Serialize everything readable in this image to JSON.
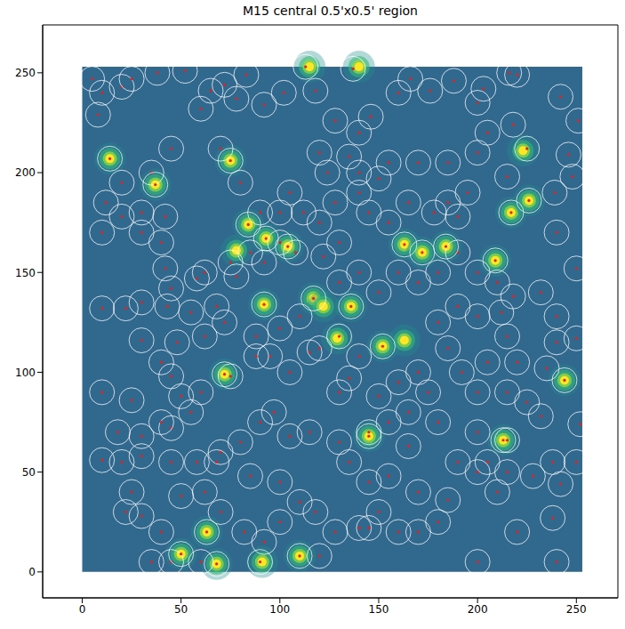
{
  "chart_data": {
    "type": "scatter",
    "title": "M15 central 0.5'x0.5' region",
    "xlim": [
      -20,
      271
    ],
    "ylim": [
      -13,
      274
    ],
    "xticks": [
      0,
      50,
      100,
      150,
      200,
      250
    ],
    "yticks": [
      0,
      50,
      100,
      150,
      200,
      250
    ],
    "image_extent": [
      0,
      253
    ],
    "color": "#d62728",
    "marker": "circle",
    "tick_labels": true,
    "bright_sources": [
      [
        14,
        207
      ],
      [
        37,
        194
      ],
      [
        75,
        206
      ],
      [
        84,
        174
      ],
      [
        93,
        167
      ],
      [
        78,
        161
      ],
      [
        104,
        163
      ],
      [
        92,
        134
      ],
      [
        117,
        137
      ],
      [
        122,
        133
      ],
      [
        136,
        133
      ],
      [
        152,
        113
      ],
      [
        163,
        164
      ],
      [
        172,
        160
      ],
      [
        184,
        163
      ],
      [
        209,
        156
      ],
      [
        217,
        180
      ],
      [
        226,
        186
      ],
      [
        223,
        211
      ],
      [
        72,
        99
      ],
      [
        244,
        96
      ],
      [
        145,
        68
      ],
      [
        213,
        66
      ],
      [
        63,
        20
      ],
      [
        50,
        9
      ],
      [
        68,
        4
      ],
      [
        91,
        5
      ],
      [
        110,
        8
      ],
      [
        115,
        253
      ],
      [
        140,
        253
      ],
      [
        163,
        116
      ],
      [
        129,
        117
      ]
    ],
    "sources": [
      [
        5,
        247
      ],
      [
        10,
        240
      ],
      [
        8,
        229
      ],
      [
        20,
        243
      ],
      [
        25,
        247
      ],
      [
        38,
        250
      ],
      [
        52,
        251
      ],
      [
        65,
        241
      ],
      [
        72,
        244
      ],
      [
        78,
        237
      ],
      [
        83,
        249
      ],
      [
        92,
        234
      ],
      [
        102,
        240
      ],
      [
        113,
        253
      ],
      [
        118,
        241
      ],
      [
        137,
        252
      ],
      [
        135,
        208
      ],
      [
        128,
        226
      ],
      [
        140,
        220
      ],
      [
        146,
        228
      ],
      [
        160,
        240
      ],
      [
        166,
        247
      ],
      [
        176,
        241
      ],
      [
        188,
        246
      ],
      [
        200,
        235
      ],
      [
        203,
        242
      ],
      [
        216,
        250
      ],
      [
        218,
        224
      ],
      [
        220,
        249
      ],
      [
        242,
        238
      ],
      [
        251,
        226
      ],
      [
        155,
        205
      ],
      [
        150,
        197
      ],
      [
        140,
        200
      ],
      [
        120,
        210
      ],
      [
        124,
        200
      ],
      [
        105,
        190
      ],
      [
        100,
        180
      ],
      [
        112,
        180
      ],
      [
        120,
        175
      ],
      [
        130,
        165
      ],
      [
        128,
        185
      ],
      [
        140,
        190
      ],
      [
        145,
        180
      ],
      [
        165,
        185
      ],
      [
        178,
        180
      ],
      [
        185,
        185
      ],
      [
        190,
        178
      ],
      [
        195,
        190
      ],
      [
        185,
        205
      ],
      [
        200,
        210
      ],
      [
        205,
        220
      ],
      [
        170,
        205
      ],
      [
        155,
        175
      ],
      [
        215,
        198
      ],
      [
        225,
        212
      ],
      [
        239,
        190
      ],
      [
        248,
        198
      ],
      [
        246,
        209
      ],
      [
        240,
        170
      ],
      [
        250,
        152
      ],
      [
        232,
        140
      ],
      [
        218,
        138
      ],
      [
        210,
        145
      ],
      [
        200,
        150
      ],
      [
        190,
        160
      ],
      [
        180,
        150
      ],
      [
        170,
        145
      ],
      [
        160,
        150
      ],
      [
        150,
        140
      ],
      [
        140,
        150
      ],
      [
        130,
        145
      ],
      [
        122,
        158
      ],
      [
        108,
        160
      ],
      [
        100,
        165
      ],
      [
        92,
        155
      ],
      [
        85,
        160
      ],
      [
        75,
        155
      ],
      [
        62,
        150
      ],
      [
        58,
        147
      ],
      [
        42,
        152
      ],
      [
        45,
        142
      ],
      [
        40,
        165
      ],
      [
        42,
        178
      ],
      [
        30,
        170
      ],
      [
        30,
        180
      ],
      [
        20,
        178
      ],
      [
        10,
        170
      ],
      [
        12,
        185
      ],
      [
        20,
        195
      ],
      [
        35,
        200
      ],
      [
        45,
        212
      ],
      [
        60,
        232
      ],
      [
        70,
        212
      ],
      [
        80,
        195
      ],
      [
        90,
        180
      ],
      [
        78,
        148
      ],
      [
        68,
        133
      ],
      [
        55,
        130
      ],
      [
        43,
        133
      ],
      [
        30,
        135
      ],
      [
        22,
        132
      ],
      [
        10,
        132
      ],
      [
        30,
        116
      ],
      [
        48,
        115
      ],
      [
        62,
        118
      ],
      [
        72,
        125
      ],
      [
        88,
        118
      ],
      [
        95,
        108
      ],
      [
        105,
        100
      ],
      [
        115,
        110
      ],
      [
        100,
        122
      ],
      [
        110,
        128
      ],
      [
        120,
        112
      ],
      [
        130,
        118
      ],
      [
        140,
        108
      ],
      [
        135,
        97
      ],
      [
        130,
        90
      ],
      [
        150,
        88
      ],
      [
        160,
        95
      ],
      [
        170,
        100
      ],
      [
        175,
        90
      ],
      [
        165,
        80
      ],
      [
        155,
        75
      ],
      [
        145,
        70
      ],
      [
        130,
        65
      ],
      [
        115,
        70
      ],
      [
        105,
        68
      ],
      [
        97,
        80
      ],
      [
        90,
        75
      ],
      [
        80,
        65
      ],
      [
        70,
        60
      ],
      [
        58,
        55
      ],
      [
        45,
        55
      ],
      [
        30,
        58
      ],
      [
        20,
        55
      ],
      [
        10,
        56
      ],
      [
        18,
        70
      ],
      [
        30,
        68
      ],
      [
        45,
        72
      ],
      [
        55,
        80
      ],
      [
        50,
        88
      ],
      [
        45,
        98
      ],
      [
        40,
        105
      ],
      [
        25,
        86
      ],
      [
        10,
        90
      ],
      [
        60,
        90
      ],
      [
        75,
        98
      ],
      [
        88,
        108
      ],
      [
        185,
        112
      ],
      [
        180,
        125
      ],
      [
        190,
        133
      ],
      [
        200,
        128
      ],
      [
        212,
        130
      ],
      [
        215,
        118
      ],
      [
        205,
        105
      ],
      [
        192,
        100
      ],
      [
        200,
        90
      ],
      [
        215,
        90
      ],
      [
        225,
        85
      ],
      [
        235,
        102
      ],
      [
        240,
        115
      ],
      [
        250,
        117
      ],
      [
        240,
        128
      ],
      [
        220,
        105
      ],
      [
        232,
        78
      ],
      [
        252,
        74
      ],
      [
        250,
        55
      ],
      [
        238,
        55
      ],
      [
        228,
        48
      ],
      [
        215,
        50
      ],
      [
        205,
        55
      ],
      [
        200,
        50
      ],
      [
        210,
        40
      ],
      [
        185,
        36
      ],
      [
        180,
        25
      ],
      [
        170,
        20
      ],
      [
        160,
        20
      ],
      [
        150,
        30
      ],
      [
        145,
        22
      ],
      [
        140,
        22
      ],
      [
        128,
        20
      ],
      [
        118,
        30
      ],
      [
        110,
        35
      ],
      [
        100,
        25
      ],
      [
        92,
        15
      ],
      [
        82,
        20
      ],
      [
        70,
        30
      ],
      [
        62,
        40
      ],
      [
        50,
        38
      ],
      [
        40,
        20
      ],
      [
        30,
        28
      ],
      [
        22,
        30
      ],
      [
        25,
        40
      ],
      [
        35,
        5
      ],
      [
        45,
        5
      ],
      [
        60,
        5
      ],
      [
        68,
        4
      ],
      [
        90,
        5
      ],
      [
        110,
        8
      ],
      [
        120,
        8
      ],
      [
        155,
        48
      ],
      [
        165,
        63
      ],
      [
        180,
        75
      ],
      [
        200,
        70
      ],
      [
        215,
        66
      ],
      [
        220,
        20
      ],
      [
        238,
        27
      ],
      [
        200,
        5
      ],
      [
        240,
        5
      ],
      [
        242,
        44
      ],
      [
        190,
        55
      ],
      [
        170,
        40
      ],
      [
        135,
        55
      ],
      [
        145,
        45
      ],
      [
        100,
        45
      ],
      [
        85,
        48
      ],
      [
        68,
        55
      ],
      [
        40,
        75
      ],
      [
        14,
        207
      ],
      [
        37,
        194
      ],
      [
        75,
        206
      ],
      [
        84,
        174
      ],
      [
        93,
        167
      ],
      [
        104,
        163
      ],
      [
        92,
        134
      ],
      [
        117,
        137
      ],
      [
        136,
        133
      ],
      [
        152,
        113
      ],
      [
        163,
        164
      ],
      [
        172,
        160
      ],
      [
        184,
        163
      ],
      [
        209,
        156
      ],
      [
        217,
        180
      ],
      [
        226,
        186
      ],
      [
        72,
        99
      ],
      [
        244,
        96
      ],
      [
        145,
        68
      ],
      [
        213,
        66
      ],
      [
        63,
        20
      ],
      [
        50,
        9
      ]
    ]
  }
}
